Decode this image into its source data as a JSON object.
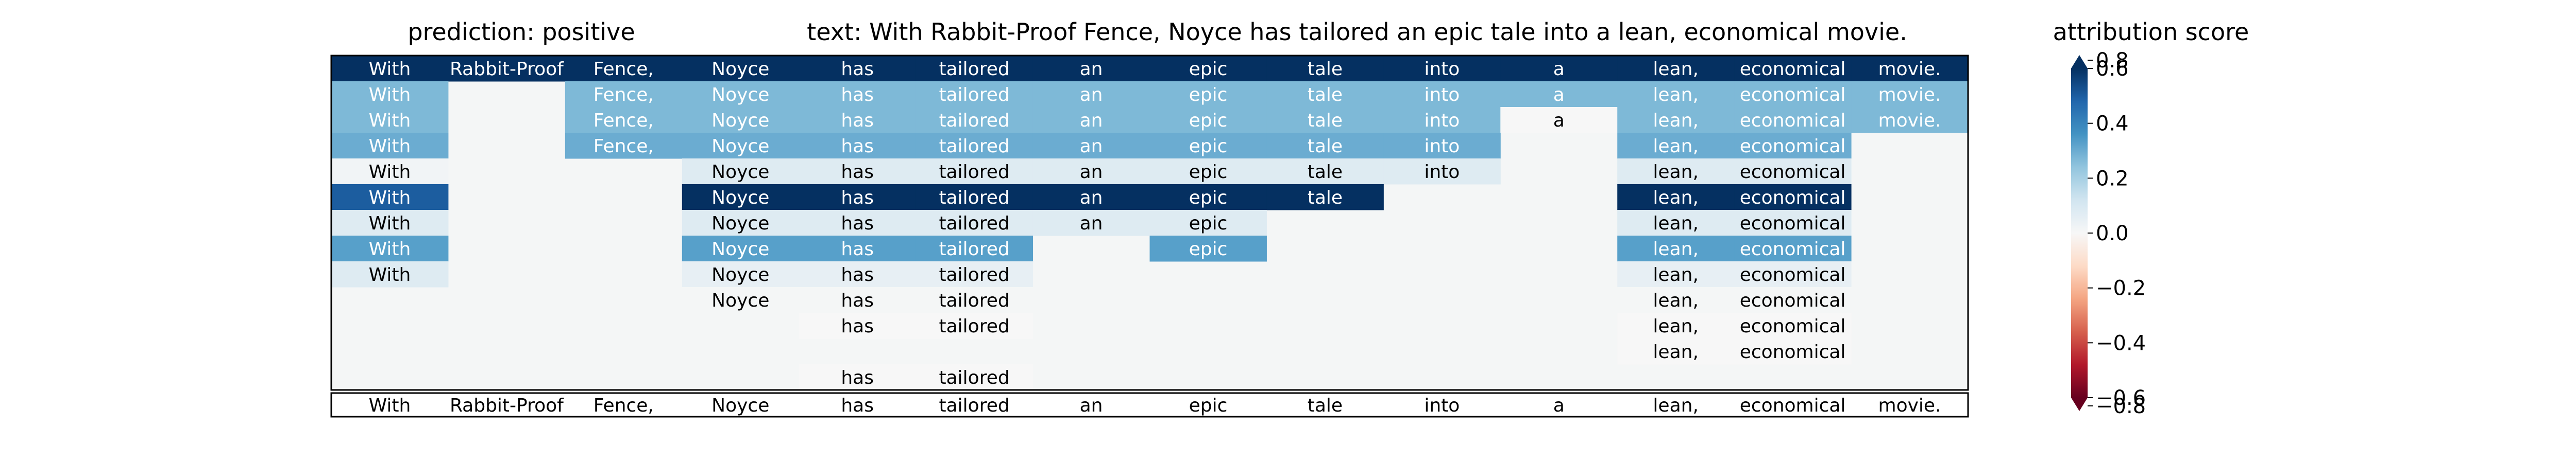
{
  "chart_data": {
    "type": "heatmap",
    "title_prediction": "prediction:  positive",
    "title_text": "text:  With Rabbit-Proof Fence, Noyce has tailored an epic tale into a lean, economical movie.",
    "colorbar_title": "attribution score",
    "tokens": [
      "With",
      "Rabbit-Proof",
      "Fence,",
      "Noyce",
      "has",
      "tailored",
      "an",
      "epic",
      "tale",
      "into",
      "a",
      "lean,",
      "economical",
      "movie."
    ],
    "colorbar": {
      "colormap": "RdBu",
      "range": [
        -0.6,
        0.6
      ],
      "extend": "both",
      "ticks": [
        "-0.8",
        "-0.6",
        "-0.4",
        "-0.2",
        "0.0",
        "0.2",
        "0.4",
        "0.6",
        "0.8"
      ],
      "tick_values": [
        -0.8,
        -0.6,
        -0.4,
        -0.2,
        0.0,
        0.2,
        0.4,
        0.6,
        0.8
      ]
    },
    "rows": [
      [
        0.8,
        0.8,
        0.8,
        0.8,
        0.8,
        0.8,
        0.8,
        0.8,
        0.8,
        0.8,
        0.8,
        0.8,
        0.8,
        0.8
      ],
      [
        0.27,
        null,
        0.27,
        0.27,
        0.27,
        0.27,
        0.27,
        0.27,
        0.27,
        0.27,
        0.27,
        0.27,
        0.27,
        0.27
      ],
      [
        0.27,
        null,
        0.27,
        0.27,
        0.27,
        0.27,
        0.27,
        0.27,
        0.27,
        0.27,
        0,
        0.27,
        0.27,
        0.27
      ],
      [
        0.3,
        null,
        0.3,
        0.3,
        0.3,
        0.3,
        0.3,
        0.3,
        0.3,
        0.3,
        null,
        0.3,
        0.3,
        null
      ],
      [
        0.02,
        null,
        null,
        0.08,
        0.08,
        0.08,
        0.08,
        0.08,
        0.08,
        0.08,
        null,
        0.08,
        0.08,
        null
      ],
      [
        0.5,
        null,
        null,
        0.65,
        0.65,
        0.65,
        0.65,
        0.65,
        0.65,
        null,
        null,
        0.65,
        0.65,
        null
      ],
      [
        0.08,
        null,
        null,
        0.08,
        0.08,
        0.08,
        0.08,
        0.08,
        null,
        null,
        null,
        0.08,
        0.08,
        null
      ],
      [
        0.33,
        null,
        null,
        0.33,
        0.33,
        0.33,
        null,
        0.33,
        null,
        null,
        null,
        0.33,
        0.33,
        null
      ],
      [
        0.08,
        null,
        null,
        0.05,
        0.05,
        0.05,
        null,
        null,
        null,
        null,
        null,
        0.05,
        0.05,
        null
      ],
      [
        null,
        null,
        null,
        0.01,
        0.01,
        0.01,
        null,
        null,
        null,
        null,
        null,
        0.01,
        0.01,
        null
      ],
      [
        null,
        null,
        null,
        null,
        0,
        0,
        null,
        null,
        null,
        null,
        null,
        0,
        0,
        null
      ],
      [
        null,
        null,
        null,
        null,
        null,
        null,
        null,
        null,
        null,
        null,
        null,
        0,
        0,
        null
      ],
      [
        null,
        null,
        null,
        null,
        0,
        0,
        null,
        null,
        null,
        null,
        null,
        null,
        null,
        null
      ]
    ]
  }
}
